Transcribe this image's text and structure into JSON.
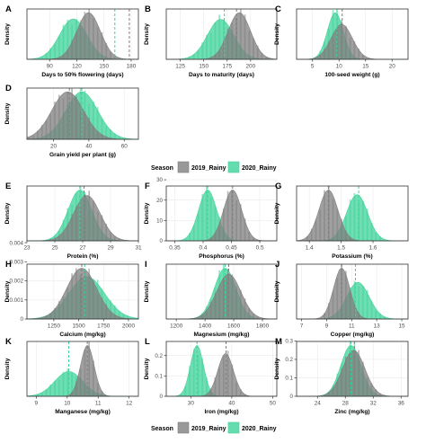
{
  "colors": {
    "series_2019": "#7f7f7f",
    "series_2020": "#3fd39a",
    "panel_bg": "#ffffff",
    "grid": "#ebebeb",
    "frame": "#333333",
    "text": "#000000"
  },
  "legend": {
    "title": "Season",
    "items": [
      "2019_Rainy",
      "2020_Rainy"
    ]
  },
  "chart_data": [
    {
      "id": "A",
      "letter": "A",
      "type": "area",
      "xlabel": "Days to 50% flowering (days)",
      "ylabel": "Density",
      "xlim": [
        65,
        188
      ],
      "xticks": [
        90,
        120,
        150,
        180
      ],
      "series": [
        {
          "name": "2019_Rainy",
          "mean": 133,
          "sd": 13
        },
        {
          "name": "2020_Rainy",
          "mean": 116,
          "sd": 15
        }
      ],
      "vlines": [
        {
          "series": "2020_Rainy",
          "x": 162
        },
        {
          "series": "2019_Rainy",
          "x": 178
        }
      ]
    },
    {
      "id": "B",
      "letter": "B",
      "type": "area",
      "xlabel": "Days to maturity (days)",
      "ylabel": "Density",
      "xlim": [
        110,
        228
      ],
      "xticks": [
        125,
        150,
        175,
        200
      ],
      "series": [
        {
          "name": "2019_Rainy",
          "mean": 188,
          "sd": 12
        },
        {
          "name": "2020_Rainy",
          "mean": 168,
          "sd": 14
        }
      ],
      "vlines": [
        {
          "series": "2020_Rainy",
          "x": 172
        },
        {
          "series": "2019_Rainy",
          "x": 185
        }
      ]
    },
    {
      "id": "C",
      "letter": "C",
      "type": "area",
      "xlabel": "100-seed weight (g)",
      "ylabel": "Density",
      "xlim": [
        2,
        23
      ],
      "xticks": [
        5,
        10,
        15,
        20
      ],
      "series": [
        {
          "name": "2019_Rainy",
          "mean": 10.5,
          "sd": 2.0
        },
        {
          "name": "2020_Rainy",
          "mean": 9.3,
          "sd": 1.5
        }
      ],
      "vlines": [
        {
          "series": "2020_Rainy",
          "x": 9.6
        },
        {
          "series": "2019_Rainy",
          "x": 10.6
        }
      ]
    },
    {
      "id": "D",
      "letter": "D",
      "type": "area",
      "xlabel": "Grain yield per plant (g)",
      "ylabel": "Density",
      "xlim": [
        5,
        68
      ],
      "xticks": [
        20,
        40,
        60
      ],
      "series": [
        {
          "name": "2019_Rainy",
          "mean": 28,
          "sd": 9
        },
        {
          "name": "2020_Rainy",
          "mean": 36,
          "sd": 9
        }
      ],
      "vlines": [
        {
          "series": "2019_Rainy",
          "x": 29
        },
        {
          "series": "2020_Rainy",
          "x": 36
        }
      ]
    },
    {
      "id": "E",
      "letter": "E",
      "type": "area",
      "xlabel": "Protein (%)",
      "ylabel": "Density",
      "xlim": [
        23,
        31
      ],
      "xticks": [
        23,
        25,
        27,
        29,
        31
      ],
      "series": [
        {
          "name": "2019_Rainy",
          "mean": 27.3,
          "sd": 0.95
        },
        {
          "name": "2020_Rainy",
          "mean": 26.8,
          "sd": 0.85
        }
      ],
      "vlines": [
        {
          "series": "2020_Rainy",
          "x": 26.8
        },
        {
          "series": "2019_Rainy",
          "x": 27.1
        }
      ]
    },
    {
      "id": "F",
      "letter": "F",
      "type": "area",
      "xlabel": "Phosphorus (%)",
      "ylabel": "Density",
      "yticks": [
        0,
        10,
        20,
        30
      ],
      "xlim": [
        0.335,
        0.53
      ],
      "xticks": [
        0.35,
        0.4,
        0.45,
        0.5
      ],
      "series": [
        {
          "name": "2019_Rainy",
          "mean": 0.452,
          "sd": 0.016
        },
        {
          "name": "2020_Rainy",
          "mean": 0.408,
          "sd": 0.016
        }
      ],
      "vlines": [
        {
          "series": "2020_Rainy",
          "x": 0.408
        },
        {
          "series": "2019_Rainy",
          "x": 0.452
        }
      ]
    },
    {
      "id": "G",
      "letter": "G",
      "type": "area",
      "xlabel": "Potassium (%)",
      "ylabel": "Density",
      "xlim": [
        1.36,
        1.71
      ],
      "xticks": [
        1.4,
        1.5,
        1.6
      ],
      "series": [
        {
          "name": "2019_Rainy",
          "mean": 1.46,
          "sd": 0.03
        },
        {
          "name": "2020_Rainy",
          "mean": 1.55,
          "sd": 0.033
        }
      ],
      "vlines": [
        {
          "series": "2019_Rainy",
          "x": 1.46
        },
        {
          "series": "2020_Rainy",
          "x": 1.555
        }
      ]
    },
    {
      "id": "H",
      "letter": "H",
      "type": "area",
      "xlabel": "Calcium (mg/kg)",
      "ylabel": "Density",
      "yticks": [
        0,
        0.001,
        0.002,
        0.003,
        0.004
      ],
      "xlim": [
        980,
        2100
      ],
      "xticks": [
        1250,
        1500,
        1750,
        2000
      ],
      "series": [
        {
          "name": "2019_Rainy",
          "mean": 1530,
          "sd": 150
        },
        {
          "name": "2020_Rainy",
          "mean": 1580,
          "sd": 180
        }
      ],
      "vlines": [
        {
          "series": "2019_Rainy",
          "x": 1530
        },
        {
          "series": "2020_Rainy",
          "x": 1560
        }
      ]
    },
    {
      "id": "I",
      "letter": "I",
      "type": "area",
      "xlabel": "Magnesium (mg/kg)",
      "ylabel": "Density",
      "xlim": [
        1130,
        1900
      ],
      "xticks": [
        1200,
        1400,
        1600,
        1800
      ],
      "series": [
        {
          "name": "2019_Rainy",
          "mean": 1565,
          "sd": 85
        },
        {
          "name": "2020_Rainy",
          "mean": 1540,
          "sd": 75
        }
      ],
      "vlines": [
        {
          "series": "2020_Rainy",
          "x": 1540
        },
        {
          "series": "2019_Rainy",
          "x": 1565
        }
      ]
    },
    {
      "id": "J",
      "letter": "J",
      "type": "area",
      "xlabel": "Copper (mg/kg)",
      "ylabel": "Density",
      "xlim": [
        6.6,
        15.5
      ],
      "xticks": [
        7,
        9,
        11,
        13,
        15
      ],
      "series": [
        {
          "name": "2019_Rainy",
          "mean": 10.2,
          "sd": 0.65
        },
        {
          "name": "2020_Rainy",
          "mean": 11.5,
          "sd": 0.9
        }
      ],
      "vlines": [
        {
          "series": "2019_Rainy",
          "x": 10.2
        },
        {
          "series": "2020_Rainy",
          "x": 11.3
        }
      ]
    },
    {
      "id": "K",
      "letter": "K",
      "type": "area",
      "xlabel": "Manganese (mg/kg)",
      "ylabel": "Density",
      "xlim": [
        8.7,
        12.3
      ],
      "xticks": [
        9,
        10,
        11,
        12
      ],
      "series": [
        {
          "name": "2019_Rainy",
          "mean": 10.65,
          "sd": 0.22
        },
        {
          "name": "2020_Rainy",
          "mean": 10.05,
          "sd": 0.45
        }
      ],
      "vlines": [
        {
          "series": "2020_Rainy",
          "x": 10.05
        },
        {
          "series": "2019_Rainy",
          "x": 10.65
        }
      ]
    },
    {
      "id": "L",
      "letter": "L",
      "type": "area",
      "xlabel": "Iron (mg/kg)",
      "ylabel": "Density",
      "yticks": [
        0,
        0.1,
        0.2
      ],
      "xlim": [
        24,
        51
      ],
      "xticks": [
        30,
        40,
        50
      ],
      "series": [
        {
          "name": "2019_Rainy",
          "mean": 38.5,
          "sd": 1.9
        },
        {
          "name": "2020_Rainy",
          "mean": 31.5,
          "sd": 1.6
        }
      ],
      "vlines": [
        {
          "series": "2020_Rainy",
          "x": 31.5
        },
        {
          "series": "2019_Rainy",
          "x": 38.6
        }
      ]
    },
    {
      "id": "M",
      "letter": "M",
      "type": "area",
      "xlabel": "Zinc (mg/kg)",
      "ylabel": "Density",
      "yticks": [
        0,
        0.1,
        0.2,
        0.3
      ],
      "xlim": [
        21,
        37
      ],
      "xticks": [
        24,
        28,
        32,
        36
      ],
      "series": [
        {
          "name": "2019_Rainy",
          "mean": 29.2,
          "sd": 1.6
        },
        {
          "name": "2020_Rainy",
          "mean": 28.8,
          "sd": 1.45
        }
      ],
      "vlines": [
        {
          "series": "2020_Rainy",
          "x": 28.8
        },
        {
          "series": "2019_Rainy",
          "x": 29.3
        }
      ]
    }
  ]
}
